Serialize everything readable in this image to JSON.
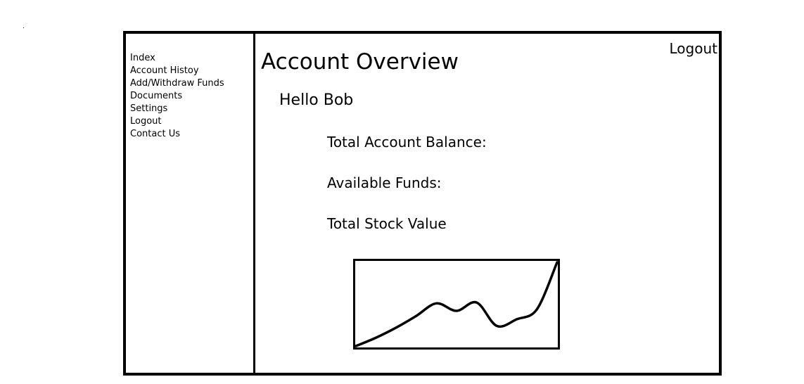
{
  "header": {
    "logout_label": "Logout"
  },
  "sidebar": {
    "items": [
      {
        "label": "Index"
      },
      {
        "label": "Account Histoy"
      },
      {
        "label": "Add/Withdraw Funds"
      },
      {
        "label": "Documents"
      },
      {
        "label": "Settings"
      },
      {
        "label": "Logout"
      },
      {
        "label": "Contact Us"
      }
    ]
  },
  "main": {
    "title": "Account Overview",
    "greeting": "Hello Bob",
    "fields": {
      "total_balance": "Total Account Balance:",
      "available_funds": "Available Funds:",
      "stock_value": "Total Stock Value"
    }
  },
  "chart_data": {
    "type": "line",
    "title": "",
    "xlabel": "",
    "ylabel": "",
    "grid": false,
    "legend": "none",
    "series": [
      {
        "values": [
          0,
          10,
          22,
          36,
          51,
          42,
          52,
          24,
          32,
          44,
          100
        ]
      }
    ],
    "line_color": "#000000"
  }
}
